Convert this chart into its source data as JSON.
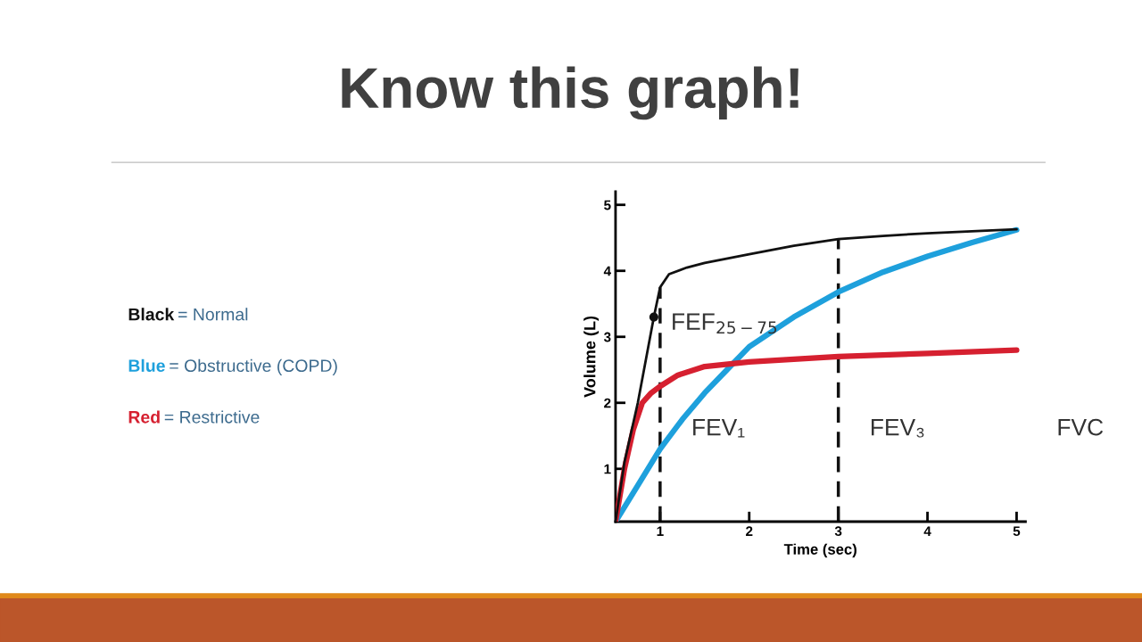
{
  "chart_data": {
    "type": "line",
    "title": "Know this graph!",
    "xlabel": "Time (sec)",
    "ylabel": "Volume (L)",
    "xlim": [
      0.5,
      5.1
    ],
    "ylim": [
      0.2,
      5.2
    ],
    "xticks": [
      1,
      2,
      3,
      4,
      5
    ],
    "yticks": [
      1,
      2,
      3,
      4,
      5
    ],
    "grid": false,
    "legend": false,
    "marker": "none",
    "line_style": "solid",
    "series": [
      {
        "color": "#111111",
        "x": [
          0.5,
          0.6,
          0.75,
          0.93,
          1.0,
          1.1,
          1.3,
          1.5,
          2,
          2.5,
          3,
          3.5,
          4,
          4.5,
          5
        ],
        "values": [
          0.2,
          1.1,
          2.0,
          3.3,
          3.75,
          3.95,
          4.05,
          4.12,
          4.25,
          4.38,
          4.48,
          4.53,
          4.57,
          4.6,
          4.63
        ]
      },
      {
        "color": "#1ea0dc",
        "x": [
          0.5,
          0.75,
          1,
          1.25,
          1.5,
          1.75,
          2,
          2.5,
          3,
          3.5,
          4,
          4.5,
          5
        ],
        "values": [
          0.2,
          0.75,
          1.3,
          1.75,
          2.15,
          2.5,
          2.85,
          3.3,
          3.68,
          3.98,
          4.22,
          4.43,
          4.62
        ]
      },
      {
        "color": "#d62030",
        "x": [
          0.5,
          0.6,
          0.7,
          0.8,
          0.9,
          1,
          1.2,
          1.5,
          2,
          3,
          4,
          5
        ],
        "values": [
          0.2,
          1.0,
          1.6,
          2.0,
          2.15,
          2.25,
          2.42,
          2.55,
          2.62,
          2.7,
          2.75,
          2.8
        ]
      },
      {
        "type": "scatter",
        "color": "#111111",
        "marker": "circle",
        "x": [
          0.93
        ],
        "values": [
          3.3
        ]
      }
    ],
    "ref_lines": [
      {
        "axis": "x",
        "value": 1,
        "color": "#111111",
        "line_style": "dashed"
      },
      {
        "axis": "x",
        "value": 3,
        "color": "#111111",
        "line_style": "dashed"
      }
    ],
    "annotations": [
      "FEV₁",
      "FEV₃",
      "FVC",
      "FEF$_{25−75}$",
      "Black = Normal",
      "Blue = Obstructive (COPD)",
      "Red = Restrictive"
    ]
  }
}
